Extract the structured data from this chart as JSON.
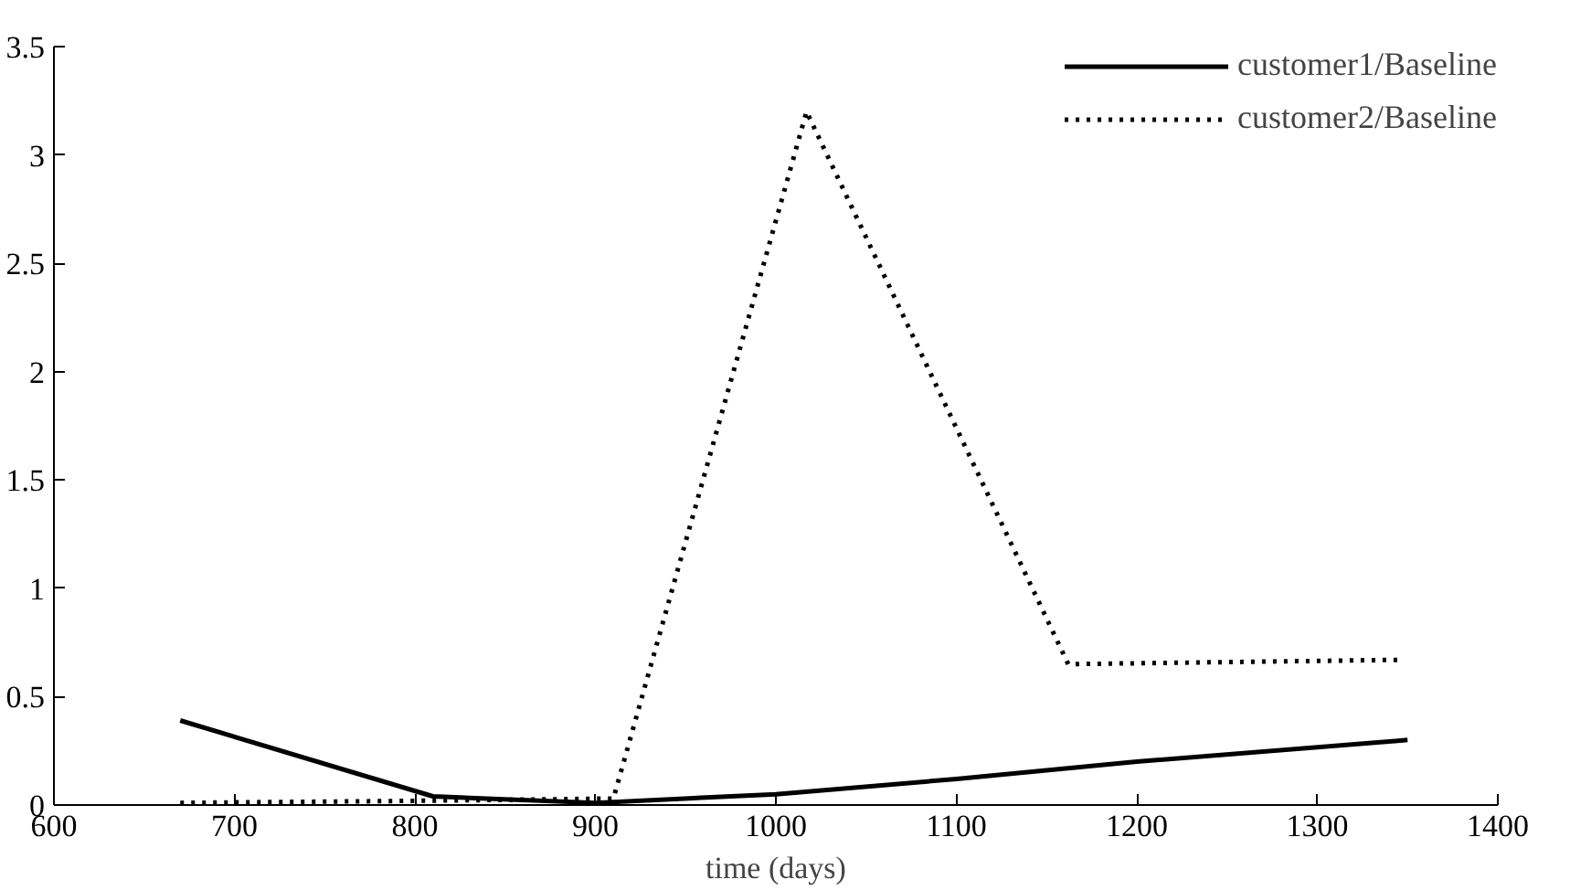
{
  "chart_data": {
    "type": "line",
    "xlabel": "time (days)",
    "xlim": [
      600,
      1400
    ],
    "xticks": [
      600,
      700,
      800,
      900,
      1000,
      1100,
      1200,
      1300,
      1400
    ],
    "ylim": [
      0,
      3.5
    ],
    "yticks": [
      0,
      0.5,
      1,
      1.5,
      2,
      2.5,
      3,
      3.5
    ],
    "grid": false,
    "legend": "top right",
    "marker": "none",
    "series": [
      {
        "name": "customer1/Baseline",
        "color": "#000000",
        "line_style": "solid",
        "x": [
          670,
          810,
          900,
          1000,
          1100,
          1200,
          1350
        ],
        "values": [
          0.39,
          0.04,
          0.01,
          0.05,
          0.12,
          0.2,
          0.3
        ]
      },
      {
        "name": "customer2/Baseline",
        "color": "#000000",
        "line_style": "dotted",
        "x": [
          670,
          810,
          910,
          1017,
          1162,
          1345
        ],
        "values": [
          0.01,
          0.02,
          0.03,
          3.2,
          0.65,
          0.67
        ]
      }
    ]
  }
}
